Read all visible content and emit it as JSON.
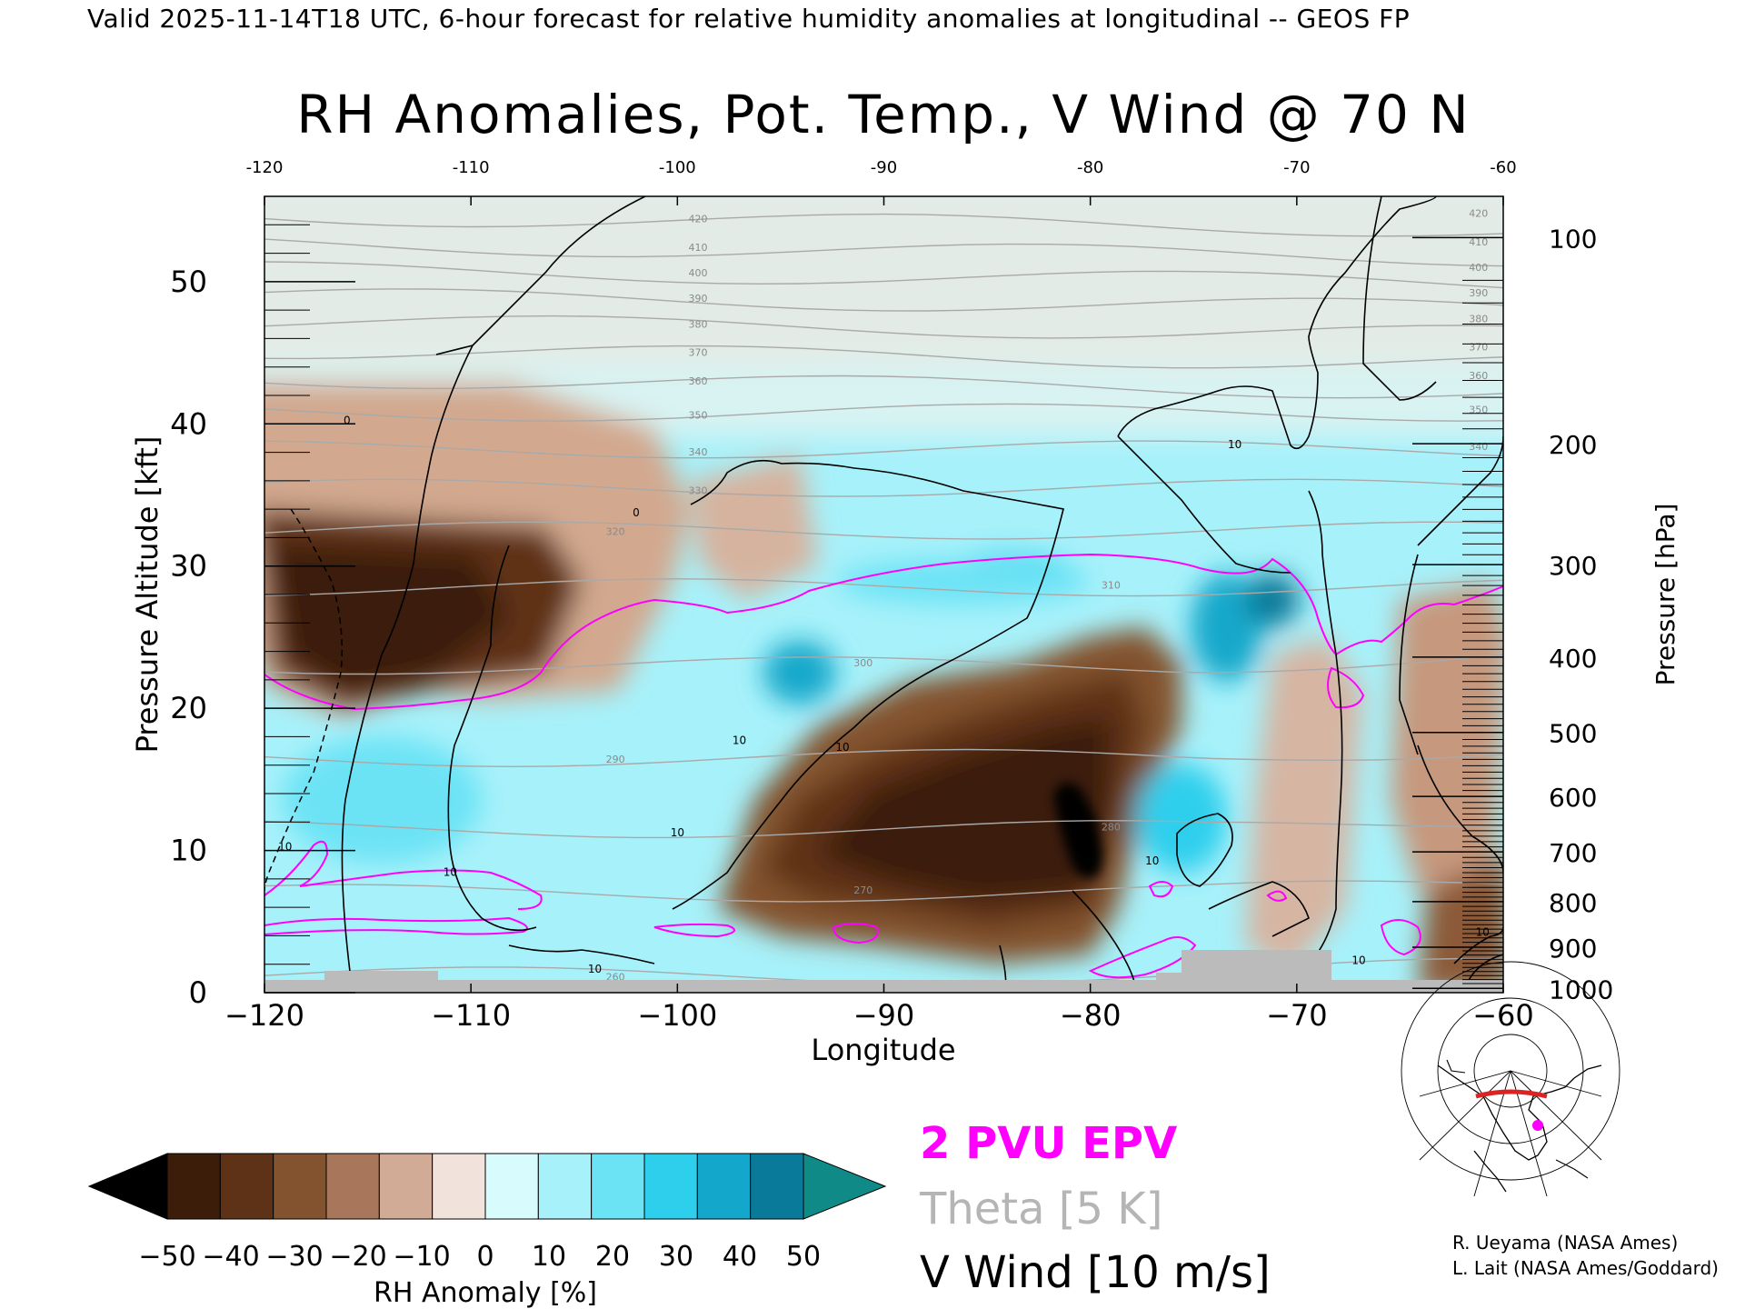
{
  "header": "Valid 2025-11-14T18 UTC, 6-hour forecast for relative humidity anomalies at longitudinal -- GEOS FP",
  "title": "RH Anomalies, Pot. Temp., V Wind @ 70 N",
  "legend": {
    "pvu_label": "2 PVU EPV",
    "pvu_color": "#ff00ff",
    "theta_label": "Theta [5 K]",
    "theta_color": "#b5b5b5",
    "wind_label": "V Wind [10 m/s]"
  },
  "credits": [
    "R. Ueyama (NASA Ames)",
    "L. Lait (NASA Ames/Goddard)"
  ],
  "colorbar": {
    "label": "RH Anomaly [%]",
    "ticks": [
      "−50",
      "−40",
      "−30",
      "−20",
      "−10",
      "0",
      "10",
      "20",
      "30",
      "40",
      "50"
    ],
    "colors": [
      "#000000",
      "#3b1d0a",
      "#5e3217",
      "#83522f",
      "#a8765a",
      "#d1ab96",
      "#f2e2dc",
      "#d8fbfd",
      "#a7f1fa",
      "#6ce3f5",
      "#2dcfed",
      "#13a8cb",
      "#0a7a9a",
      "#0f8a86"
    ]
  },
  "chart_data": {
    "type": "heatmap",
    "title": "RH Anomalies, Pot. Temp., V Wind @ 70 N",
    "xlabel": "Longitude",
    "ylabel": "Pressure Altitude [kft]",
    "ylabel_right": "Pressure [hPa]",
    "xlim": [
      -120,
      -60
    ],
    "ylim": [
      0,
      56
    ],
    "x_ticks": [
      "−120",
      "−110",
      "−100",
      "−90",
      "−80",
      "−70",
      "−60"
    ],
    "x_ticks_top": [
      "-120",
      "-110",
      "-100",
      "-90",
      "-80",
      "-70",
      "-60"
    ],
    "y_ticks": [
      "0",
      "10",
      "20",
      "30",
      "40",
      "50"
    ],
    "pressure_ticks": [
      {
        "label": "100",
        "kft": 53.1
      },
      {
        "label": "200",
        "kft": 38.6
      },
      {
        "label": "300",
        "kft": 30.1
      },
      {
        "label": "400",
        "kft": 23.6
      },
      {
        "label": "500",
        "kft": 18.3
      },
      {
        "label": "600",
        "kft": 13.8
      },
      {
        "label": "700",
        "kft": 9.9
      },
      {
        "label": "800",
        "kft": 6.4
      },
      {
        "label": "900",
        "kft": 3.2
      },
      {
        "label": "1000",
        "kft": 0.3
      }
    ],
    "theta_levels": [
      "260",
      "270",
      "280",
      "290",
      "300",
      "310",
      "320",
      "330",
      "340",
      "350",
      "360",
      "370",
      "380",
      "390",
      "400",
      "410",
      "420"
    ],
    "rh_anomaly_regions": [
      {
        "lon": -114.5,
        "kft": 29,
        "anomaly": -45
      },
      {
        "lon": -108,
        "kft": 26,
        "anomaly": -35
      },
      {
        "lon": -84,
        "kft": 13,
        "anomaly": -45
      },
      {
        "lon": -80,
        "kft": 13,
        "anomaly": -55
      },
      {
        "lon": -99,
        "kft": 33,
        "anomaly": -15
      },
      {
        "lon": -94,
        "kft": 23,
        "anomaly": 35
      },
      {
        "lon": -73,
        "kft": 28,
        "anomaly": 35
      },
      {
        "lon": -110,
        "kft": 12,
        "anomaly": 20
      },
      {
        "lon": -64,
        "kft": 16,
        "anomaly": -20
      },
      {
        "lon": -62,
        "kft": 4,
        "anomaly": -30
      }
    ],
    "wind_contour_labels": [
      "0",
      "0",
      "10",
      "10",
      "10",
      "10",
      "10",
      "10",
      "10",
      "10",
      "10",
      "10"
    ]
  }
}
